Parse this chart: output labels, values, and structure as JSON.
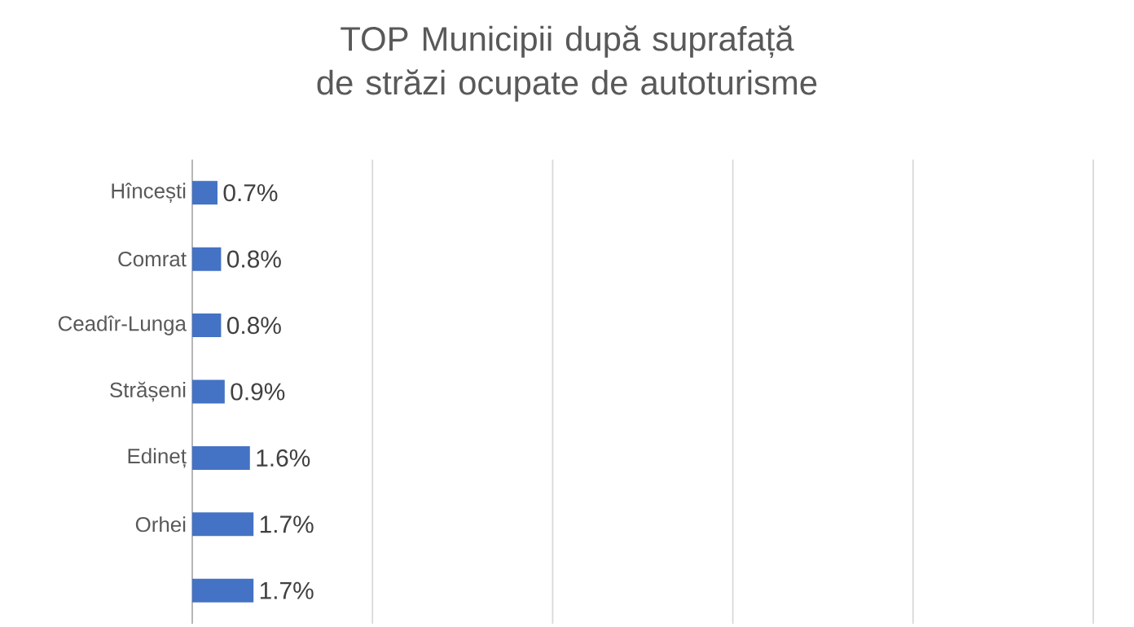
{
  "chart_data": {
    "type": "bar",
    "orientation": "horizontal",
    "title": "TOP Municipii după suprafață de străzi ocupate de autoturisme",
    "categories": [
      "Hîncești",
      "Comrat",
      "Ceadîr-Lunga",
      "Strășeni",
      "Edineț",
      "Orhei",
      null
    ],
    "values": [
      0.7,
      0.8,
      0.8,
      0.9,
      1.6,
      1.7,
      1.7
    ],
    "value_labels": [
      "0.7%",
      "0.8%",
      "0.8%",
      "0.9%",
      "1.6%",
      "1.7%",
      "1.7%"
    ],
    "color": "#4472c4",
    "xlim": [
      0,
      25
    ],
    "xticks": [
      {
        "value": 0,
        "label": null
      },
      {
        "value": 5,
        "label": null
      },
      {
        "value": 10,
        "label": null
      },
      {
        "value": 15,
        "label": null
      },
      {
        "value": 20,
        "label": null
      },
      {
        "value": 25,
        "label": null
      }
    ],
    "grid": "x",
    "tick_labels": "y"
  }
}
